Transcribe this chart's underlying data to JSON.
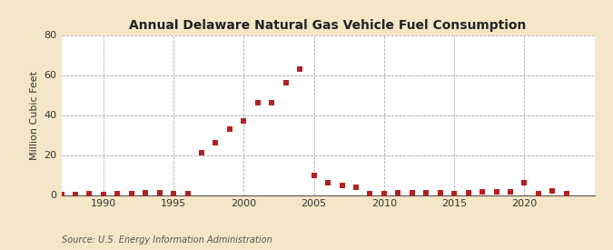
{
  "title": "Annual Delaware Natural Gas Vehicle Fuel Consumption",
  "ylabel": "Million Cubic Feet",
  "source": "Source: U.S. Energy Information Administration",
  "background_color": "#f5e6c8",
  "plot_background_color": "#ffffff",
  "marker_color": "#b22222",
  "marker_size": 4,
  "xlim": [
    1987,
    2025
  ],
  "ylim": [
    0,
    80
  ],
  "yticks": [
    0,
    20,
    40,
    60,
    80
  ],
  "xticks": [
    1990,
    1995,
    2000,
    2005,
    2010,
    2015,
    2020
  ],
  "years": [
    1987,
    1988,
    1989,
    1990,
    1991,
    1992,
    1993,
    1994,
    1995,
    1996,
    1997,
    1998,
    1999,
    2000,
    2001,
    2002,
    2003,
    2004,
    2005,
    2006,
    2007,
    2008,
    2009,
    2010,
    2011,
    2012,
    2013,
    2014,
    2015,
    2016,
    2017,
    2018,
    2019,
    2020,
    2021,
    2022,
    2023
  ],
  "values": [
    0.1,
    0.1,
    0.5,
    0.3,
    0.5,
    0.5,
    1.0,
    1.0,
    0.5,
    0.5,
    21.0,
    26.0,
    33.0,
    37.0,
    46.0,
    46.0,
    56.0,
    63.0,
    10.0,
    6.0,
    5.0,
    4.0,
    0.5,
    0.5,
    1.0,
    1.0,
    1.0,
    1.0,
    0.5,
    1.0,
    1.5,
    1.5,
    1.5,
    6.0,
    0.5,
    2.0,
    0.5
  ],
  "title_fontsize": 10,
  "tick_fontsize": 8,
  "ylabel_fontsize": 8,
  "source_fontsize": 7
}
